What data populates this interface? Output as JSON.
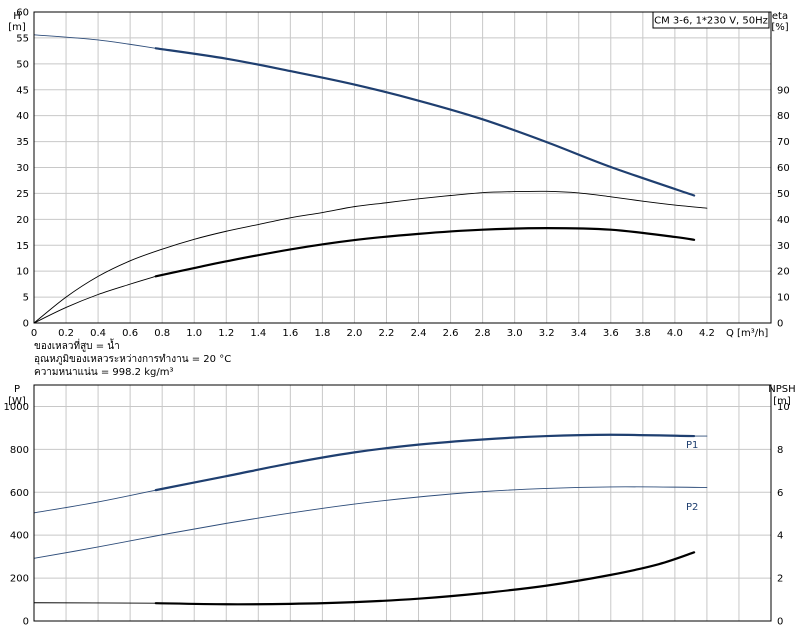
{
  "chart_data": [
    {
      "type": "line",
      "name_label": "performance-curves",
      "title": "CM 3-6, 1*230 V, 50Hz",
      "xlabel": "Q [m³/h]",
      "x_ticks": [
        "0",
        "0.2",
        "0.4",
        "0.6",
        "0.8",
        "1.0",
        "1.2",
        "1.4",
        "1.6",
        "1.8",
        "2.0",
        "2.2",
        "2.4",
        "2.6",
        "2.8",
        "3.0",
        "3.2",
        "3.4",
        "3.6",
        "3.8",
        "4.0",
        "4.2"
      ],
      "xlim": [
        0,
        4.6
      ],
      "y_left": {
        "label_top": "H",
        "label_unit": "[m]",
        "ylim": [
          0,
          60
        ],
        "ticks": [
          "0",
          "5",
          "10",
          "15",
          "20",
          "25",
          "30",
          "35",
          "40",
          "45",
          "50",
          "55",
          "60"
        ]
      },
      "y_right": {
        "label_top": "eta",
        "label_unit": "[%]",
        "ylim": [
          0,
          120
        ],
        "ticks": [
          "0",
          "10",
          "20",
          "30",
          "40",
          "50",
          "60",
          "70",
          "80",
          "90"
        ]
      },
      "series": [
        {
          "axis": "left",
          "style": "thin",
          "color": "#2e4d7a",
          "x": [
            0,
            0.4,
            0.76
          ],
          "y": [
            55.6,
            54.6,
            53.0
          ]
        },
        {
          "axis": "left",
          "style": "thick",
          "color": "#1f3f70",
          "x": [
            0.76,
            1.2,
            1.6,
            2.0,
            2.4,
            2.8,
            3.2,
            3.6,
            4.12
          ],
          "y": [
            53.0,
            51.0,
            48.6,
            46.0,
            42.9,
            39.3,
            34.9,
            30.1,
            24.6
          ]
        },
        {
          "axis": "right",
          "style": "thin",
          "color": "#000000",
          "x": [
            0,
            0.2,
            0.4,
            0.6,
            0.8,
            1.0,
            1.2,
            1.4,
            1.6,
            1.8,
            2.0,
            2.2,
            2.4,
            2.6,
            2.8,
            3.0,
            3.2,
            3.4,
            3.6,
            3.8,
            4.0,
            4.2
          ],
          "y": [
            0,
            10,
            18,
            24,
            28.5,
            32.3,
            35.4,
            38.0,
            40.6,
            42.6,
            44.9,
            46.4,
            47.9,
            49.2,
            50.3,
            50.7,
            50.8,
            50.2,
            48.7,
            47.0,
            45.5,
            44.3
          ]
        },
        {
          "axis": "right",
          "style": "thin",
          "color": "#000000",
          "x": [
            0,
            0.2,
            0.4,
            0.6,
            0.76
          ],
          "y": [
            0,
            6,
            11,
            15,
            18
          ]
        },
        {
          "axis": "right",
          "style": "thick",
          "color": "#000000",
          "x": [
            0.76,
            1.0,
            1.2,
            1.6,
            2.0,
            2.4,
            2.8,
            3.2,
            3.6,
            4.0,
            4.12
          ],
          "y": [
            18,
            21.2,
            23.8,
            28.4,
            32.0,
            34.4,
            36.0,
            36.6,
            36.0,
            33.2,
            32.1
          ]
        }
      ]
    },
    {
      "type": "line",
      "name_label": "power-npsh-curves",
      "y_left": {
        "label_top": "P",
        "label_unit": "[W]",
        "ylim": [
          0,
          1100
        ],
        "ticks": [
          "0",
          "200",
          "400",
          "600",
          "800",
          "1000"
        ]
      },
      "y_right": {
        "label_top": "NPSH",
        "label_unit": "[m]",
        "ylim": [
          0,
          11
        ],
        "ticks": [
          "0",
          "2",
          "4",
          "6",
          "8",
          "10"
        ]
      },
      "series": [
        {
          "name": "P1",
          "axis": "left",
          "style": "thin",
          "color": "#2e4d7a",
          "x": [
            0,
            0.4,
            0.76
          ],
          "y": [
            504,
            555,
            610
          ]
        },
        {
          "name": "P1",
          "axis": "left",
          "style": "thick",
          "color": "#1f3f70",
          "x": [
            0.76,
            1.2,
            1.6,
            2.0,
            2.4,
            2.8,
            3.2,
            3.6,
            4.12
          ],
          "y": [
            610,
            675,
            735,
            786,
            822,
            846,
            862,
            868,
            862
          ]
        },
        {
          "name": "",
          "axis": "left",
          "style": "thin",
          "color": "#2e4d7a",
          "x": [
            4.12,
            4.2
          ],
          "y": [
            862,
            862
          ]
        },
        {
          "name": "P2",
          "axis": "left",
          "style": "thin",
          "color": "#2e4d7a",
          "x": [
            0,
            0.4,
            0.8,
            1.2,
            1.6,
            2.0,
            2.4,
            2.8,
            3.2,
            3.6,
            4.0,
            4.2
          ],
          "y": [
            292,
            345,
            402,
            455,
            503,
            545,
            578,
            603,
            618,
            625,
            624,
            622
          ]
        },
        {
          "name": "",
          "axis": "right",
          "style": "thin",
          "color": "#000000",
          "x": [
            0,
            0.76
          ],
          "y": [
            0.85,
            0.83
          ]
        },
        {
          "name": "",
          "axis": "right",
          "style": "thick",
          "color": "#000000",
          "x": [
            0.76,
            1.2,
            1.6,
            2.0,
            2.4,
            2.8,
            3.2,
            3.6,
            3.9,
            4.12
          ],
          "y": [
            0.83,
            0.78,
            0.8,
            0.88,
            1.04,
            1.3,
            1.65,
            2.15,
            2.65,
            3.2
          ]
        }
      ]
    }
  ],
  "notes": [
    "ของเหลวที่สูบ = น้ำ",
    "อุณหภูมิของเหลวระหว่างการทำงาน = 20 °C",
    "ความหนาแน่น = 998.2 kg/m³"
  ]
}
